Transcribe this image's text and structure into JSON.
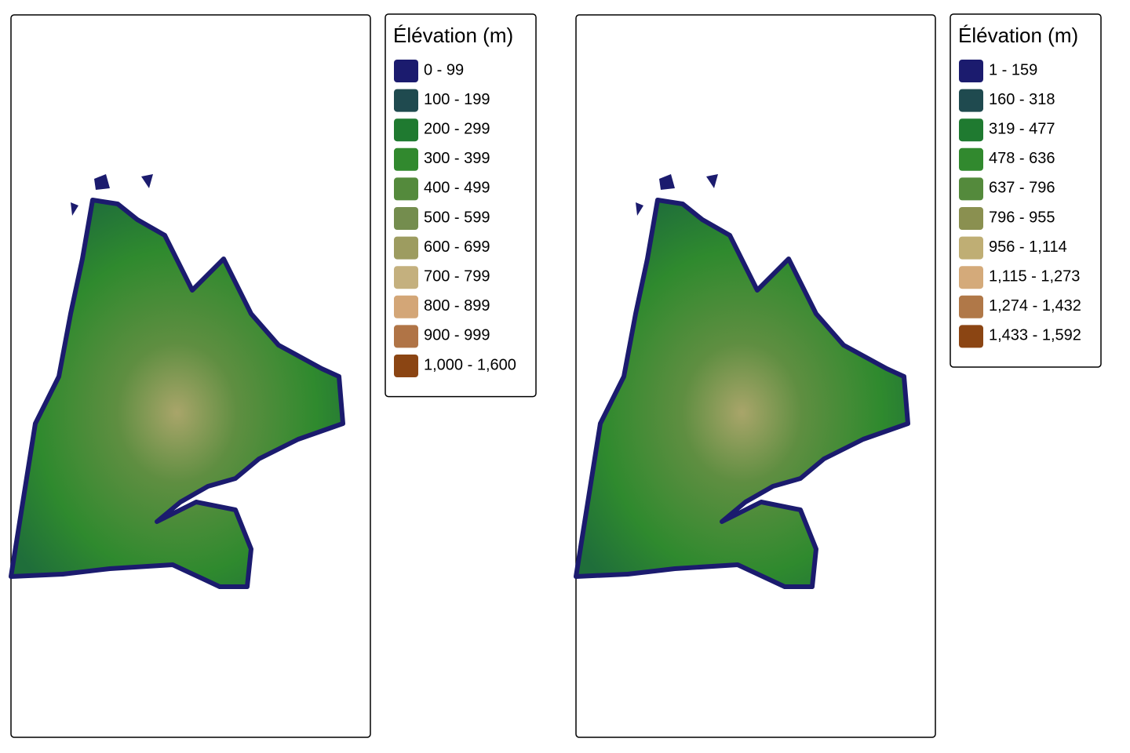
{
  "maps": [
    {
      "legend": {
        "title": "Élévation (m)",
        "items": [
          {
            "label": "0 - 99",
            "color": "#1b1b6e"
          },
          {
            "label": "100 - 199",
            "color": "#1f4a4f"
          },
          {
            "label": "200 - 299",
            "color": "#1f7a30"
          },
          {
            "label": "300 - 399",
            "color": "#31892e"
          },
          {
            "label": "400 - 499",
            "color": "#548a3c"
          },
          {
            "label": "500 - 599",
            "color": "#748d4e"
          },
          {
            "label": "600 - 699",
            "color": "#9d9c60"
          },
          {
            "label": "700 - 799",
            "color": "#c4b07e"
          },
          {
            "label": "800 - 899",
            "color": "#d3a677"
          },
          {
            "label": "900 - 999",
            "color": "#b07446"
          },
          {
            "label": "1,000 - 1,600",
            "color": "#8b4513"
          }
        ]
      }
    },
    {
      "legend": {
        "title": "Élévation (m)",
        "items": [
          {
            "label": "1 - 159",
            "color": "#1b1b6e"
          },
          {
            "label": "160 - 318",
            "color": "#1f4a4f"
          },
          {
            "label": "319 - 477",
            "color": "#1f7a30"
          },
          {
            "label": "478 - 636",
            "color": "#31892e"
          },
          {
            "label": "637 - 796",
            "color": "#548a3c"
          },
          {
            "label": "796 - 955",
            "color": "#8a9050"
          },
          {
            "label": "956 - 1,114",
            "color": "#bfae74"
          },
          {
            "label": "1,115 - 1,273",
            "color": "#d4aa7a"
          },
          {
            "label": "1,274 - 1,432",
            "color": "#b07848"
          },
          {
            "label": "1,433 - 1,592",
            "color": "#8b4513"
          }
        ]
      }
    }
  ]
}
